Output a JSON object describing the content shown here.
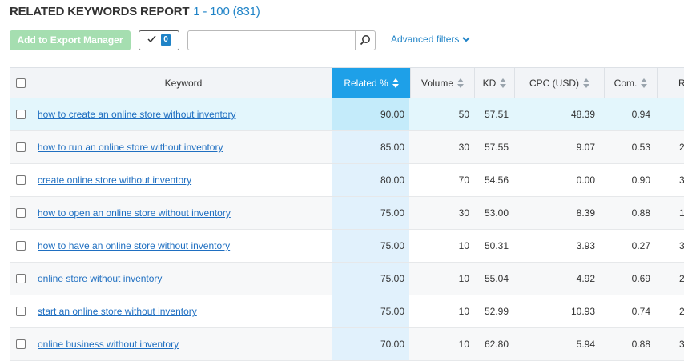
{
  "report": {
    "title": "RELATED KEYWORDS REPORT",
    "range": "1 - 100 (831)"
  },
  "toolbar": {
    "export_label": "Add to Export Manager",
    "selected_count": "0",
    "search_value": "",
    "search_placeholder": "",
    "advanced_filters_label": "Advanced filters"
  },
  "table": {
    "columns": {
      "keyword": "Keyword",
      "related": "Related %",
      "volume": "Volume",
      "kd": "KD",
      "cpc": "CPC (USD)",
      "com": "Com.",
      "results": "R"
    },
    "rows": [
      {
        "keyword": "how to create an online store without inventory",
        "related": "90.00",
        "volume": "50",
        "kd": "57.51",
        "cpc": "48.39",
        "com": "0.94",
        "results": ""
      },
      {
        "keyword": "how to run an online store without inventory",
        "related": "85.00",
        "volume": "30",
        "kd": "57.55",
        "cpc": "9.07",
        "com": "0.53",
        "results": "2"
      },
      {
        "keyword": "create online store without inventory",
        "related": "80.00",
        "volume": "70",
        "kd": "54.56",
        "cpc": "0.00",
        "com": "0.90",
        "results": "3"
      },
      {
        "keyword": "how to open an online store without inventory",
        "related": "75.00",
        "volume": "30",
        "kd": "53.00",
        "cpc": "8.39",
        "com": "0.88",
        "results": "1"
      },
      {
        "keyword": "how to have an online store without inventory",
        "related": "75.00",
        "volume": "10",
        "kd": "50.31",
        "cpc": "3.93",
        "com": "0.27",
        "results": "3"
      },
      {
        "keyword": "online store without inventory",
        "related": "75.00",
        "volume": "10",
        "kd": "55.04",
        "cpc": "4.92",
        "com": "0.69",
        "results": "2"
      },
      {
        "keyword": "start an online store without inventory",
        "related": "75.00",
        "volume": "10",
        "kd": "52.99",
        "cpc": "10.93",
        "com": "0.74",
        "results": "2"
      },
      {
        "keyword": "online business without inventory",
        "related": "70.00",
        "volume": "10",
        "kd": "62.80",
        "cpc": "5.94",
        "com": "0.88",
        "results": "3"
      }
    ]
  },
  "colors": {
    "accent": "#1f83c7",
    "active_column_header": "#1ea0e8",
    "active_column_cells": "#e1f1fc",
    "highlighted_row": "#e3f6fc",
    "export_button": "#a5deb0"
  }
}
